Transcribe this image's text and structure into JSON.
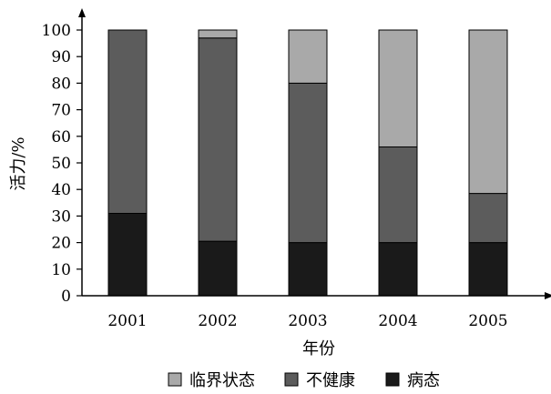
{
  "chart_data": {
    "type": "bar",
    "stacked": true,
    "categories": [
      "2001",
      "2002",
      "2003",
      "2004",
      "2005"
    ],
    "series": [
      {
        "name": "病态",
        "color": "#1a1a1a",
        "values": [
          31,
          20.5,
          20,
          20,
          20
        ]
      },
      {
        "name": "不健康",
        "color": "#5c5c5c",
        "values": [
          69,
          76.5,
          60,
          36,
          18.5
        ]
      },
      {
        "name": "临界状态",
        "color": "#a9a9a9",
        "values": [
          0,
          3,
          20,
          44,
          61.5
        ]
      }
    ],
    "legend_order": [
      "临界状态",
      "不健康",
      "病态"
    ],
    "xlabel": "年份",
    "ylabel": "活力/%",
    "ylim": [
      0,
      100
    ],
    "yticks": [
      0,
      10,
      20,
      30,
      40,
      50,
      60,
      70,
      80,
      90,
      100
    ],
    "grid": false,
    "legend_position": "bottom"
  }
}
